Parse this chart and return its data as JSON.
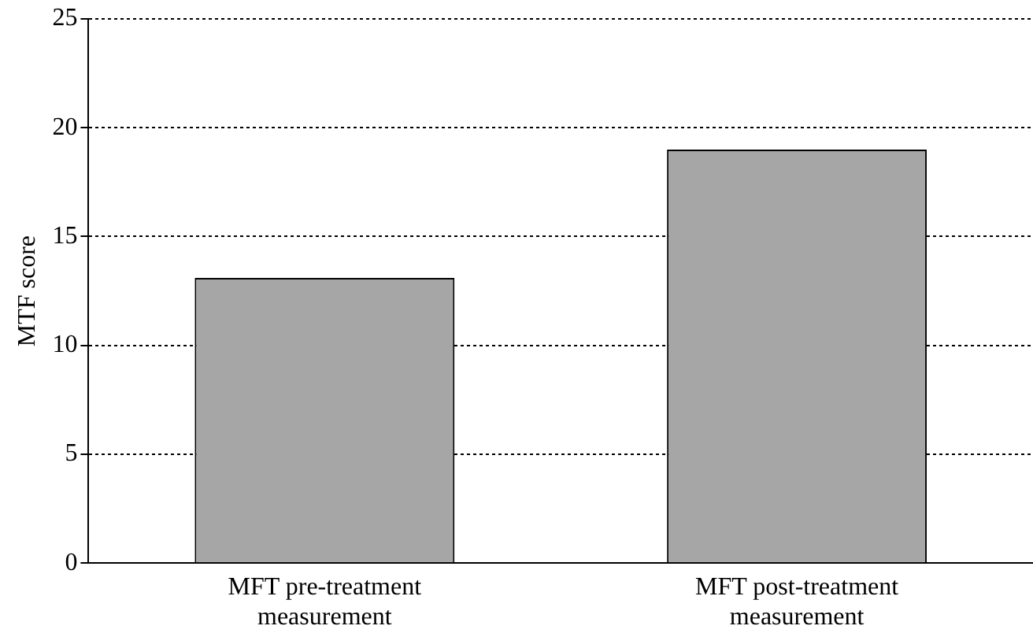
{
  "chart_data": {
    "type": "bar",
    "ylabel": "MTF score",
    "categories": [
      "MFT pre-treatment measurement",
      "MFT post-treatment measurement"
    ],
    "values": [
      13.1,
      19.0
    ],
    "color": "#a6a6a6",
    "ylim": [
      0,
      25
    ],
    "yticks": [
      0,
      5,
      10,
      15,
      20,
      25
    ],
    "grid": "y"
  }
}
